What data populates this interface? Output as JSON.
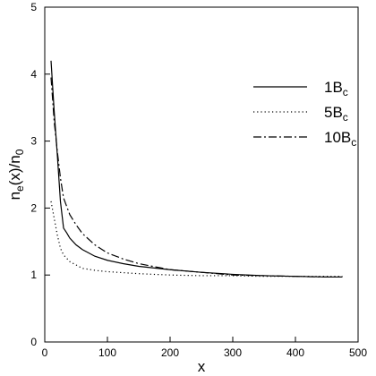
{
  "chart_data": {
    "type": "line",
    "xlabel": "x",
    "ylabel": {
      "main": "n",
      "sub1": "e",
      "middle": "(x)/n",
      "sub2": "0"
    },
    "xlim": [
      0,
      500
    ],
    "ylim": [
      0,
      5
    ],
    "x_ticks": [
      0,
      100,
      200,
      300,
      400,
      500
    ],
    "y_ticks": [
      0,
      1,
      2,
      3,
      4,
      5
    ],
    "grid": false,
    "legend_position": "top-right",
    "series": [
      {
        "name": {
          "main": "1B",
          "sub": "c"
        },
        "style": "solid",
        "x": [
          10,
          15,
          20,
          25,
          30,
          35,
          40,
          50,
          60,
          80,
          100,
          125,
          150,
          200,
          250,
          300,
          350,
          400,
          450,
          475
        ],
        "y": [
          4.2,
          3.45,
          2.8,
          2.1,
          1.7,
          1.63,
          1.55,
          1.45,
          1.38,
          1.28,
          1.22,
          1.17,
          1.13,
          1.08,
          1.04,
          1.01,
          0.99,
          0.98,
          0.97,
          0.97
        ]
      },
      {
        "name": {
          "main": "5B",
          "sub": "c"
        },
        "style": "dotted",
        "x": [
          10,
          15,
          20,
          25,
          30,
          40,
          50,
          60,
          80,
          100,
          150,
          200,
          250,
          300,
          350,
          400,
          450,
          475
        ],
        "y": [
          2.1,
          1.85,
          1.6,
          1.4,
          1.3,
          1.2,
          1.15,
          1.1,
          1.07,
          1.05,
          1.02,
          1.0,
          0.99,
          0.99,
          0.98,
          0.98,
          0.98,
          0.98
        ]
      },
      {
        "name": {
          "main": "10B",
          "sub": "c"
        },
        "style": "dash-dot",
        "x": [
          10,
          15,
          20,
          25,
          30,
          40,
          50,
          60,
          80,
          100,
          125,
          150,
          200,
          250,
          300,
          350,
          400,
          450,
          475
        ],
        "y": [
          3.95,
          3.3,
          2.85,
          2.45,
          2.15,
          1.9,
          1.75,
          1.62,
          1.45,
          1.33,
          1.24,
          1.17,
          1.08,
          1.04,
          1.0,
          0.99,
          0.98,
          0.97,
          0.97
        ]
      }
    ]
  }
}
